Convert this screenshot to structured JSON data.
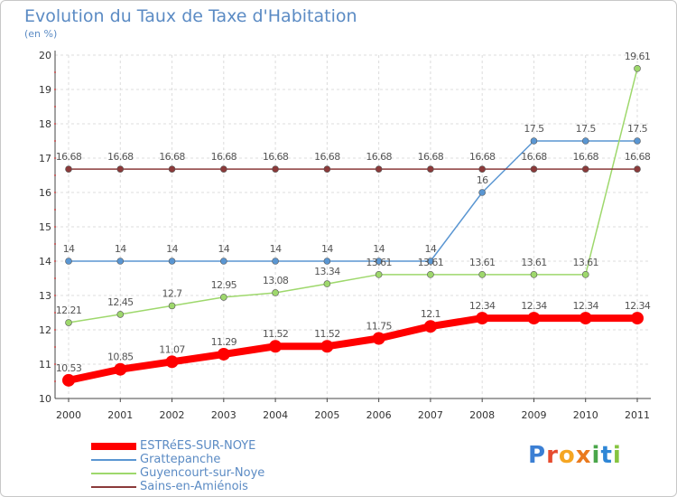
{
  "title": "Evolution du Taux de Taxe d'Habitation",
  "subtitle": "(en %)",
  "logo": {
    "text": "Proxiti",
    "colors": [
      "#3b7fd4",
      "#e64b2e",
      "#f5a623",
      "#ea7a1e",
      "#4aa64a",
      "#2e86d6",
      "#86c440"
    ]
  },
  "chart_data": {
    "type": "line",
    "title": "Evolution du Taux de Taxe d'Habitation",
    "subtitle": "(en %)",
    "xlabel": "",
    "ylabel": "",
    "grid": true,
    "legend_position": "bottom-left",
    "categories": [
      "2000",
      "2001",
      "2002",
      "2003",
      "2004",
      "2005",
      "2006",
      "2007",
      "2008",
      "2009",
      "2010",
      "2011"
    ],
    "ylim": [
      10,
      20
    ],
    "yticks": [
      10,
      11,
      12,
      13,
      14,
      15,
      16,
      17,
      18,
      19,
      20
    ],
    "series": [
      {
        "name": "ESTRéES-SUR-NOYE",
        "color": "#ff0000",
        "thick": true,
        "values": [
          10.53,
          10.85,
          11.07,
          11.29,
          11.52,
          11.52,
          11.75,
          12.1,
          12.34,
          12.34,
          12.34,
          12.34
        ],
        "labels": [
          "10.53",
          "10.85",
          "11.07",
          "11.29",
          "11.52",
          "11.52",
          "11.75",
          "12.1",
          "12.34",
          "12.34",
          "12.34",
          "12.34"
        ]
      },
      {
        "name": "Grattepanche",
        "color": "#5a96d2",
        "thick": false,
        "values": [
          14,
          14,
          14,
          14,
          14,
          14,
          14,
          14,
          16,
          17.5,
          17.5,
          17.5
        ],
        "labels": [
          "14",
          "14",
          "14",
          "14",
          "14",
          "14",
          "14",
          "14",
          "16",
          "17.5",
          "17.5",
          "17.5"
        ]
      },
      {
        "name": "Guyencourt-sur-Noye",
        "color": "#9ed86c",
        "thick": false,
        "values": [
          12.21,
          12.45,
          12.7,
          12.95,
          13.08,
          13.34,
          13.61,
          13.61,
          13.61,
          13.61,
          13.61,
          19.61
        ],
        "labels": [
          "12.21",
          "12.45",
          "12.7",
          "12.95",
          "13.08",
          "13.34",
          "13.61",
          "13.61",
          "13.61",
          "13.61",
          "13.61",
          "19.61"
        ]
      },
      {
        "name": "Sains-en-Amiénois",
        "color": "#8b3a3a",
        "thick": false,
        "values": [
          16.68,
          16.68,
          16.68,
          16.68,
          16.68,
          16.68,
          16.68,
          16.68,
          16.68,
          16.68,
          16.68,
          16.68
        ],
        "labels": [
          "16.68",
          "16.68",
          "16.68",
          "16.68",
          "16.68",
          "16.68",
          "16.68",
          "16.68",
          "16.68",
          "16.68",
          "16.68",
          "16.68"
        ]
      }
    ]
  }
}
